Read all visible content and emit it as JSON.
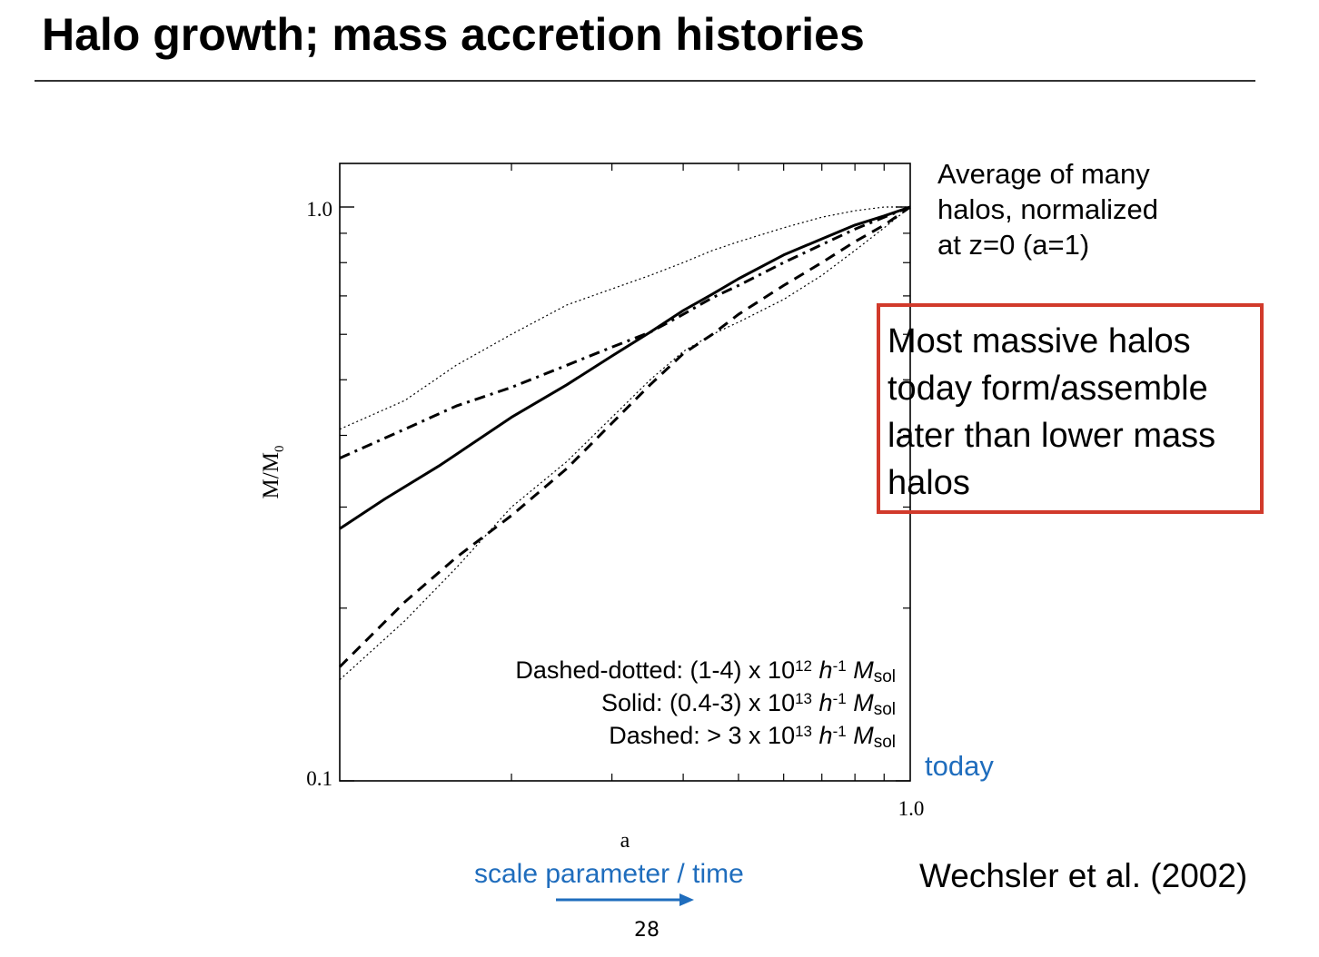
{
  "slide": {
    "title": "Halo growth; mass accretion histories",
    "side_note": "Average of many\nhalos, normalized\nat z=0 (a=1)",
    "callout": "Most massive halos\ntoday form/assemble\nlater than lower mass\nhalos",
    "today_label": "today",
    "scale_label": "scale parameter / time",
    "citation": "Wechsler et al. (2002)",
    "page_number": "28",
    "colors": {
      "callout_border": "#d13a2b",
      "annotation_blue": "#1f6dbd",
      "ink": "#000000"
    }
  },
  "chart_data": {
    "type": "line",
    "title": "",
    "xlabel": "a",
    "ylabel_main": "M/M",
    "ylabel_sub": "0",
    "x_scale": "log",
    "y_scale": "log",
    "xlim": [
      0.1,
      1.0
    ],
    "ylim": [
      0.1,
      1.0
    ],
    "x_tick_labels": [
      {
        "value": 1.0,
        "label": "1.0"
      }
    ],
    "y_tick_labels": [
      {
        "value": 1.0,
        "label": "1.0"
      },
      {
        "value": 0.1,
        "label": "0.1"
      }
    ],
    "x_minor_ticks": [
      0.2,
      0.3,
      0.4,
      0.5,
      0.6,
      0.7,
      0.8,
      0.9
    ],
    "y_minor_ticks": [
      0.2,
      0.3,
      0.4,
      0.5,
      0.6,
      0.7,
      0.8,
      0.9
    ],
    "grid": false,
    "legend": {
      "placement": "bottom-right",
      "entries": [
        {
          "prefix": "Dashed-dotted: (1-4) x 10",
          "exp": "12",
          "unit": "h",
          "unit_exp": "-1",
          "mass": "M",
          "mass_sub": "sol"
        },
        {
          "prefix": "Solid: (0.4-3) x 10",
          "exp": "13",
          "unit": "h",
          "unit_exp": "-1",
          "mass": "M",
          "mass_sub": "sol"
        },
        {
          "prefix": "Dashed: > 3 x 10",
          "exp": "13",
          "unit": "h",
          "unit_exp": "-1",
          "mass": "M",
          "mass_sub": "sol"
        }
      ]
    },
    "series": [
      {
        "style": "dashdot",
        "x": [
          0.1,
          0.13,
          0.16,
          0.2,
          0.25,
          0.3,
          0.35,
          0.4,
          0.45,
          0.5,
          0.6,
          0.7,
          0.8,
          0.9,
          1.0
        ],
        "y": [
          0.365,
          0.41,
          0.45,
          0.485,
          0.53,
          0.57,
          0.605,
          0.65,
          0.695,
          0.73,
          0.8,
          0.86,
          0.915,
          0.96,
          1.0
        ]
      },
      {
        "style": "solid",
        "x": [
          0.1,
          0.12,
          0.15,
          0.2,
          0.25,
          0.3,
          0.35,
          0.4,
          0.45,
          0.5,
          0.6,
          0.7,
          0.8,
          0.9,
          1.0
        ],
        "y": [
          0.275,
          0.31,
          0.355,
          0.43,
          0.49,
          0.55,
          0.605,
          0.66,
          0.705,
          0.75,
          0.825,
          0.88,
          0.93,
          0.965,
          1.0
        ]
      },
      {
        "style": "dashed",
        "x": [
          0.1,
          0.13,
          0.16,
          0.2,
          0.25,
          0.3,
          0.35,
          0.4,
          0.45,
          0.5,
          0.6,
          0.7,
          0.8,
          0.9,
          1.0
        ],
        "y": [
          0.158,
          0.205,
          0.245,
          0.29,
          0.35,
          0.42,
          0.49,
          0.555,
          0.6,
          0.65,
          0.73,
          0.8,
          0.87,
          0.93,
          1.0
        ]
      },
      {
        "style": "dotted",
        "x": [
          0.1,
          0.13,
          0.16,
          0.2,
          0.25,
          0.3,
          0.35,
          0.4,
          0.45,
          0.5,
          0.6,
          0.7,
          0.8,
          0.9,
          1.0
        ],
        "y": [
          0.41,
          0.46,
          0.53,
          0.6,
          0.675,
          0.72,
          0.76,
          0.8,
          0.84,
          0.87,
          0.92,
          0.96,
          0.985,
          1.0,
          1.0
        ]
      },
      {
        "style": "dotted",
        "x": [
          0.1,
          0.13,
          0.16,
          0.2,
          0.25,
          0.3,
          0.35,
          0.4,
          0.45,
          0.5,
          0.6,
          0.7,
          0.8,
          0.9,
          1.0
        ],
        "y": [
          0.15,
          0.19,
          0.235,
          0.3,
          0.36,
          0.43,
          0.5,
          0.56,
          0.6,
          0.63,
          0.69,
          0.76,
          0.84,
          0.92,
          1.0
        ]
      }
    ]
  }
}
